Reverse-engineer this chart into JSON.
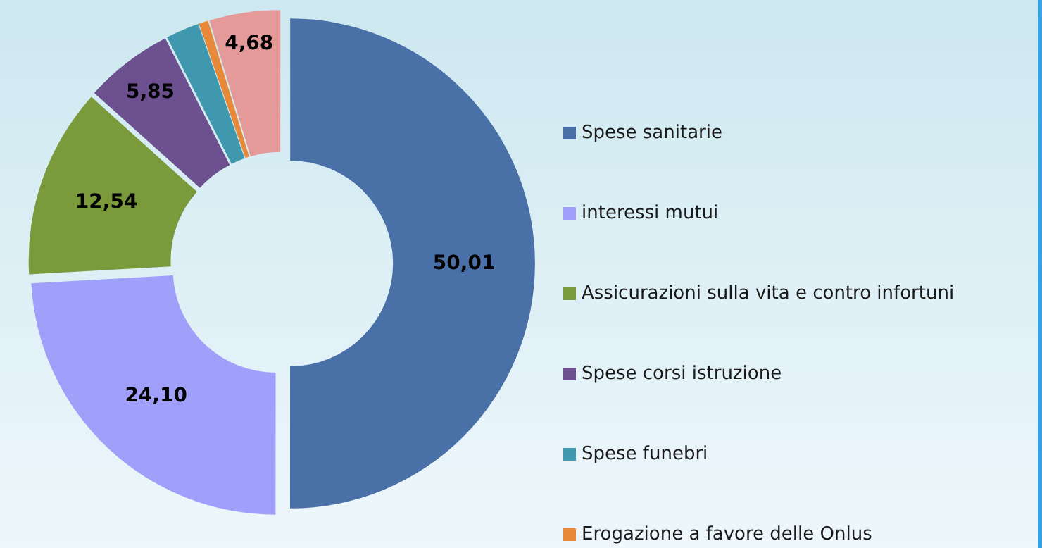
{
  "chart_data": {
    "type": "donut",
    "categories": [
      "Spese sanitarie",
      "interessi mutui",
      "Assicurazioni sulla vita e contro infortuni",
      "Spese corsi istruzione",
      "Spese funebri",
      "Erogazione a favore delle Onlus",
      null
    ],
    "values": [
      50.01,
      24.1,
      12.54,
      5.85,
      2.2,
      0.62,
      4.68
    ],
    "colors": [
      "#4a70a8",
      "#a0a0fa",
      "#7a9a3c",
      "#6c5090",
      "#3f98ae",
      "#e8893a",
      "#e49a98"
    ],
    "value_labels": [
      "50,01",
      "24,10",
      "12,54",
      "5,85",
      null,
      null,
      "4,68"
    ],
    "legend": "right"
  }
}
